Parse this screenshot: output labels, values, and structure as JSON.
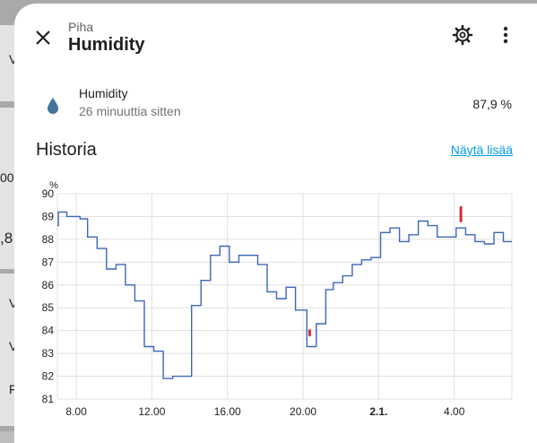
{
  "dialog": {
    "domain_label": "Piha",
    "title": "Humidity"
  },
  "entity": {
    "name": "Humidity",
    "last_changed": "26 minuuttia sitten",
    "value": "87,9 %",
    "icon": "water-drop-icon"
  },
  "history": {
    "title": "Historia",
    "show_more": "Näytä lisää"
  },
  "background": {
    "texts": [
      "V",
      "00",
      ",8",
      "V",
      "V",
      "F"
    ]
  },
  "colors": {
    "accent_link": "#039be5",
    "line": "#3b67b8",
    "anomaly": "#d32f2f",
    "icon": "#44739e"
  },
  "chart_data": {
    "type": "line",
    "title": "",
    "xlabel": "",
    "ylabel": "%",
    "ylim": [
      81,
      90
    ],
    "yticks": [
      "81",
      "82",
      "83",
      "84",
      "85",
      "86",
      "87",
      "88",
      "89",
      "90"
    ],
    "xlim_hours": [
      7.0,
      31.05
    ],
    "xticks": [
      {
        "hour": 8,
        "label": "8.00",
        "bold": false
      },
      {
        "hour": 12,
        "label": "12.00",
        "bold": false
      },
      {
        "hour": 16,
        "label": "16.00",
        "bold": false
      },
      {
        "hour": 20,
        "label": "20.00",
        "bold": false
      },
      {
        "hour": 24,
        "label": "2.1.",
        "bold": true
      },
      {
        "hour": 28,
        "label": "4.00",
        "bold": false
      }
    ],
    "grid": true,
    "step": true,
    "series": [
      {
        "points": [
          [
            7.0,
            88.6
          ],
          [
            7.05,
            89.2
          ],
          [
            7.5,
            89.0
          ],
          [
            8.2,
            88.9
          ],
          [
            8.6,
            88.1
          ],
          [
            9.1,
            87.6
          ],
          [
            9.6,
            86.7
          ],
          [
            10.1,
            86.9
          ],
          [
            10.6,
            86.0
          ],
          [
            11.1,
            85.3
          ],
          [
            11.6,
            83.3
          ],
          [
            12.1,
            83.1
          ],
          [
            12.6,
            81.9
          ],
          [
            13.1,
            82.0
          ],
          [
            13.7,
            82.0
          ],
          [
            14.1,
            85.1
          ],
          [
            14.6,
            86.2
          ],
          [
            15.1,
            87.3
          ],
          [
            15.6,
            87.7
          ],
          [
            16.1,
            87.0
          ],
          [
            16.6,
            87.3
          ],
          [
            17.6,
            86.9
          ],
          [
            18.1,
            85.7
          ],
          [
            18.6,
            85.4
          ],
          [
            19.1,
            85.9
          ],
          [
            19.6,
            84.9
          ],
          [
            20.2,
            83.3
          ],
          [
            20.7,
            84.3
          ],
          [
            21.2,
            85.8
          ],
          [
            21.6,
            86.1
          ],
          [
            22.1,
            86.4
          ],
          [
            22.6,
            86.9
          ],
          [
            23.1,
            87.1
          ],
          [
            23.6,
            87.2
          ],
          [
            24.1,
            88.3
          ],
          [
            24.6,
            88.5
          ],
          [
            25.1,
            87.9
          ],
          [
            25.6,
            88.2
          ],
          [
            26.1,
            88.8
          ],
          [
            26.6,
            88.6
          ],
          [
            27.1,
            88.1
          ],
          [
            28.1,
            88.5
          ],
          [
            28.6,
            88.2
          ],
          [
            29.1,
            87.9
          ],
          [
            29.6,
            87.8
          ],
          [
            30.1,
            88.3
          ],
          [
            30.6,
            87.9
          ],
          [
            31.05,
            87.9
          ]
        ]
      }
    ],
    "anomalies": [
      {
        "hour": 20.35,
        "from": 83.8,
        "to": 84.0
      },
      {
        "hour": 28.35,
        "from": 88.8,
        "to": 89.4
      }
    ]
  }
}
